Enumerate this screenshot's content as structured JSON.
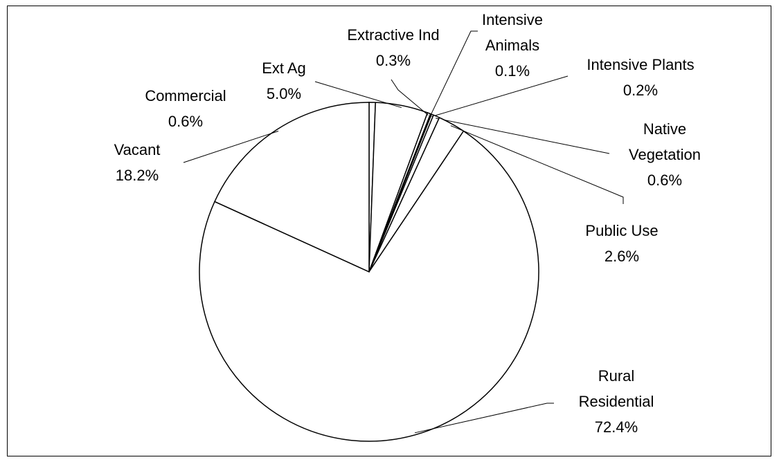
{
  "chart_data": {
    "type": "pie",
    "categories": [
      "Commercial",
      "Ext Ag",
      "Extractive Ind",
      "Intensive Animals",
      "Intensive Plants",
      "Native Vegetation",
      "Public Use",
      "Rural Residential",
      "Vacant"
    ],
    "values": [
      0.6,
      5.0,
      0.3,
      0.1,
      0.2,
      0.6,
      2.6,
      72.4,
      18.2
    ],
    "value_labels": [
      "0.6%",
      "5.0%",
      "0.3%",
      "0.1%",
      "0.2%",
      "0.6%",
      "2.6%",
      "72.4%",
      "18.2%"
    ],
    "color": "#ffffff"
  }
}
